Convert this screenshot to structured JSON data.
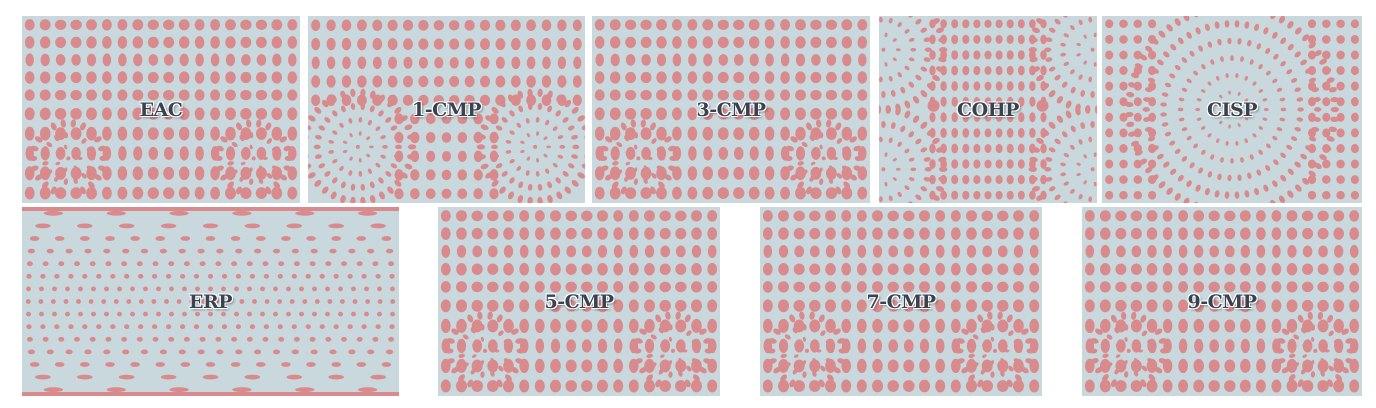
{
  "colors": {
    "background": "#c8d8dc",
    "dot": "#d98a8c",
    "label": "#3a4250"
  },
  "panels": [
    {
      "id": "eac",
      "label": "EAC",
      "pattern": "cube-faces-3"
    },
    {
      "id": "1-cmp",
      "label": "1-CMP",
      "pattern": "fisheye-pair"
    },
    {
      "id": "3-cmp",
      "label": "3-CMP",
      "pattern": "cube-faces-3"
    },
    {
      "id": "cohp",
      "label": "COHP",
      "pattern": "octahedron"
    },
    {
      "id": "cisp",
      "label": "CISP",
      "pattern": "icosahedron"
    },
    {
      "id": "erp",
      "label": "ERP",
      "pattern": "equirectangular"
    },
    {
      "id": "5-cmp",
      "label": "5-CMP",
      "pattern": "cube-faces-3"
    },
    {
      "id": "7-cmp",
      "label": "7-CMP",
      "pattern": "cube-faces-3"
    },
    {
      "id": "9-cmp",
      "label": "9-CMP",
      "pattern": "cube-faces-3"
    }
  ]
}
